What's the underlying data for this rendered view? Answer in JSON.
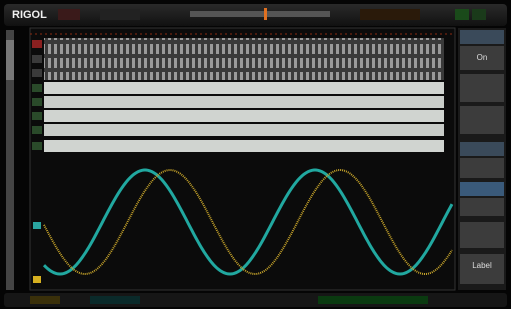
{
  "header": {
    "brand": "RIGOL"
  },
  "menu": {
    "items": [
      "On",
      "Label"
    ]
  }
}
